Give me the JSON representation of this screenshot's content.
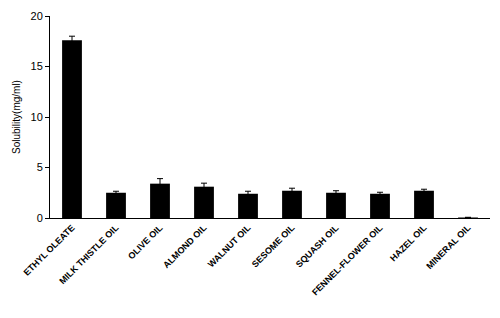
{
  "chart_data": {
    "type": "bar",
    "categories": [
      "ETHYL OLEATE",
      "MILK THISTLE OIL",
      "OLIVE OIL",
      "ALMOND OIL",
      "WALNUT OIL",
      "SESOME OIL",
      "SQUASH OIL",
      "FENNEL-FLOWER OIL",
      "HAZEL OIL",
      "MINERAL OIL"
    ],
    "values": [
      17.6,
      2.5,
      3.4,
      3.1,
      2.4,
      2.7,
      2.5,
      2.4,
      2.7,
      0.05
    ],
    "errors": [
      0.4,
      0.15,
      0.5,
      0.35,
      0.25,
      0.25,
      0.2,
      0.15,
      0.15,
      0.02
    ],
    "color": "#000000",
    "y_label": "Solubility(mg/ml)",
    "ylim": [
      0,
      20
    ],
    "yticks": [
      0,
      5,
      10,
      15,
      20
    ],
    "grid": false
  }
}
